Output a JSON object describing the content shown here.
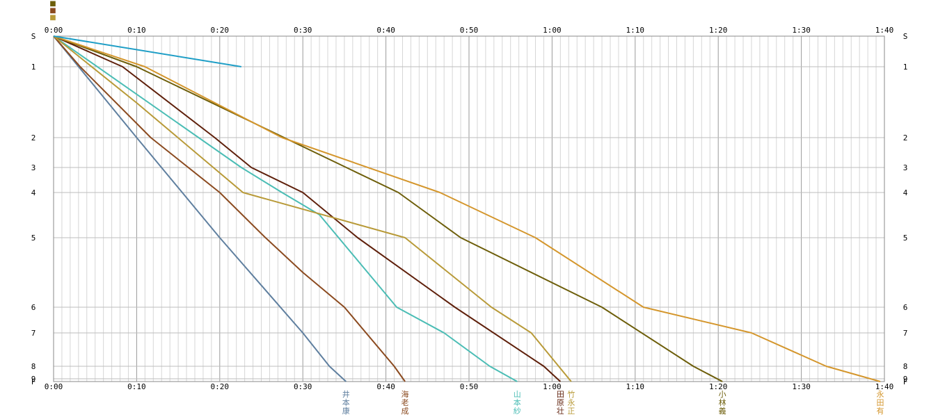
{
  "chart_data": {
    "type": "line",
    "title": "",
    "xlabel": "",
    "ylabel": "",
    "xlim": [
      0,
      100
    ],
    "x_ticks": [
      "0:00",
      "0:10",
      "0:20",
      "0:30",
      "0:40",
      "0:50",
      "1:00",
      "1:10",
      "1:20",
      "1:30",
      "1:40"
    ],
    "y_ticks": [
      "S",
      "1",
      "2",
      "3",
      "4",
      "5",
      "6",
      "7",
      "8",
      "9",
      "F"
    ],
    "grid": true,
    "minor_grid_minutes": 1,
    "series": [
      {
        "name": "井本康",
        "color": "#5f7f9f",
        "times": [
          0,
          10,
          20,
          30,
          33.2,
          35.2
        ],
        "cps": [
          "S",
          "2",
          "5",
          "7",
          "8",
          "F"
        ]
      },
      {
        "name": "海老成",
        "color": "#8b4a1f",
        "times": [
          0,
          3.2,
          11.7,
          20,
          25.5,
          30,
          35,
          41,
          42.3
        ],
        "cps": [
          "S",
          "1",
          "2",
          "4",
          "5",
          "5.6",
          "6",
          "8",
          "F"
        ]
      },
      {
        "name": "山本紗",
        "color": "#4bbdb5",
        "times": [
          0,
          22.6,
          27.5,
          32,
          41.3,
          47,
          52.5,
          55.8
        ],
        "cps": [
          "S",
          "3",
          "4",
          "4.5",
          "6",
          "7",
          "8",
          "F"
        ]
      },
      {
        "name": "田原壮",
        "color": "#5e1f0a",
        "times": [
          0,
          8.3,
          19.4,
          23.8,
          30,
          36.6,
          48.3,
          59,
          61
        ],
        "cps": [
          "S",
          "1",
          "2",
          "3",
          "4",
          "5",
          "6",
          "8",
          "F"
        ]
      },
      {
        "name": "竹永正",
        "color": "#b89a38",
        "times": [
          0,
          10,
          22.8,
          42.3,
          52.7,
          57.5,
          62.3
        ],
        "cps": [
          "S",
          "1.5",
          "4",
          "5",
          "6",
          "7",
          "F"
        ]
      },
      {
        "name": "小林義",
        "color": "#6d5e0a",
        "times": [
          0,
          10,
          41.5,
          49,
          66,
          77,
          80.5
        ],
        "cps": [
          "S",
          "1",
          "4",
          "5",
          "6",
          "8",
          "F"
        ]
      },
      {
        "name": "永田有",
        "color": "#d4962c",
        "times": [
          0,
          11,
          27.5,
          46.5,
          58,
          71,
          84,
          93,
          99.5
        ],
        "cps": [
          "S",
          "1",
          "2",
          "4",
          "5",
          "6",
          "7",
          "8",
          "F"
        ]
      },
      {
        "name": "",
        "color": "#1e9ec6",
        "times": [
          0,
          22.6
        ],
        "cps": [
          "S",
          "1"
        ]
      }
    ]
  }
}
